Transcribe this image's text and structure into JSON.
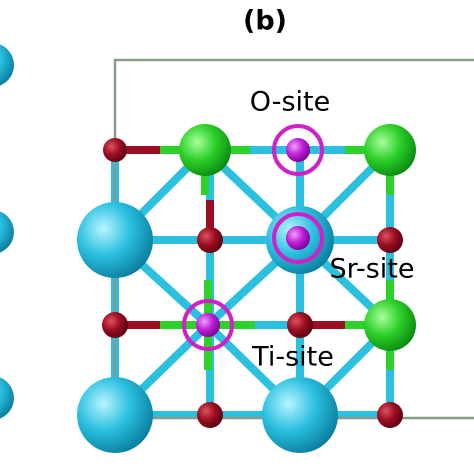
{
  "panel_label": "(b)",
  "labels": {
    "o_site": "O-site",
    "sr_site": "Sr-site",
    "ti_site": "Ti-site"
  }
}
